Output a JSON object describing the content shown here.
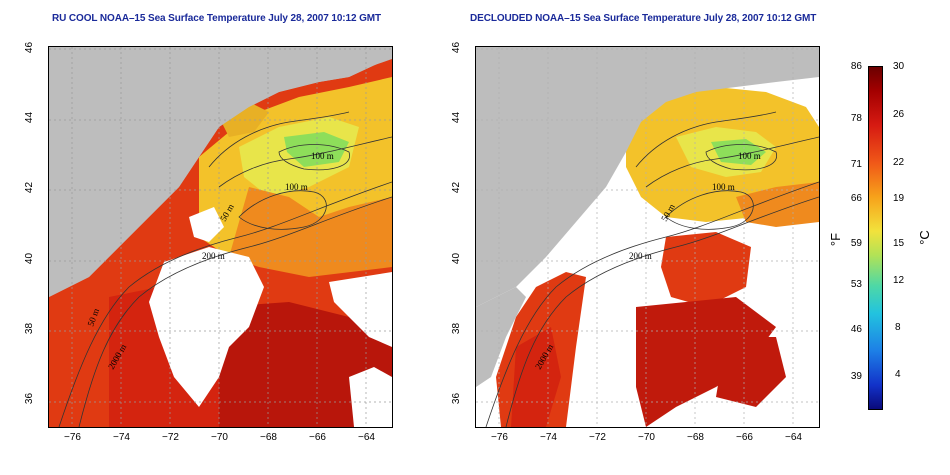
{
  "left_panel": {
    "title": "RU COOL NOAA–15 Sea Surface Temperature July 28, 2007 10:12 GMT",
    "contour_labels": [
      "100 m",
      "100 m",
      "50 m",
      "200 m",
      "50 m",
      "2000 m"
    ]
  },
  "right_panel": {
    "title": "DECLOUDED NOAA–15 Sea Surface Temperature July 28, 2007 10:12 GMT",
    "contour_labels": [
      "100 m",
      "100 m",
      "50 m",
      "200 m",
      "2000 m"
    ]
  },
  "x_ticks": [
    "−76",
    "−74",
    "−72",
    "−70",
    "−68",
    "−66",
    "−64"
  ],
  "y_ticks": [
    "46",
    "44",
    "42",
    "40",
    "38",
    "36"
  ],
  "colorbar": {
    "left_unit": "°F",
    "right_unit": "°C",
    "fahrenheit_ticks": [
      "86",
      "78",
      "71",
      "66",
      "59",
      "53",
      "46",
      "39"
    ],
    "celsius_ticks": [
      "30",
      "26",
      "22",
      "19",
      "15",
      "12",
      "8",
      "4"
    ]
  },
  "colors": {
    "title": "#1a2a9a",
    "land": "#bdbdbd",
    "cloud": "#ffffff"
  }
}
